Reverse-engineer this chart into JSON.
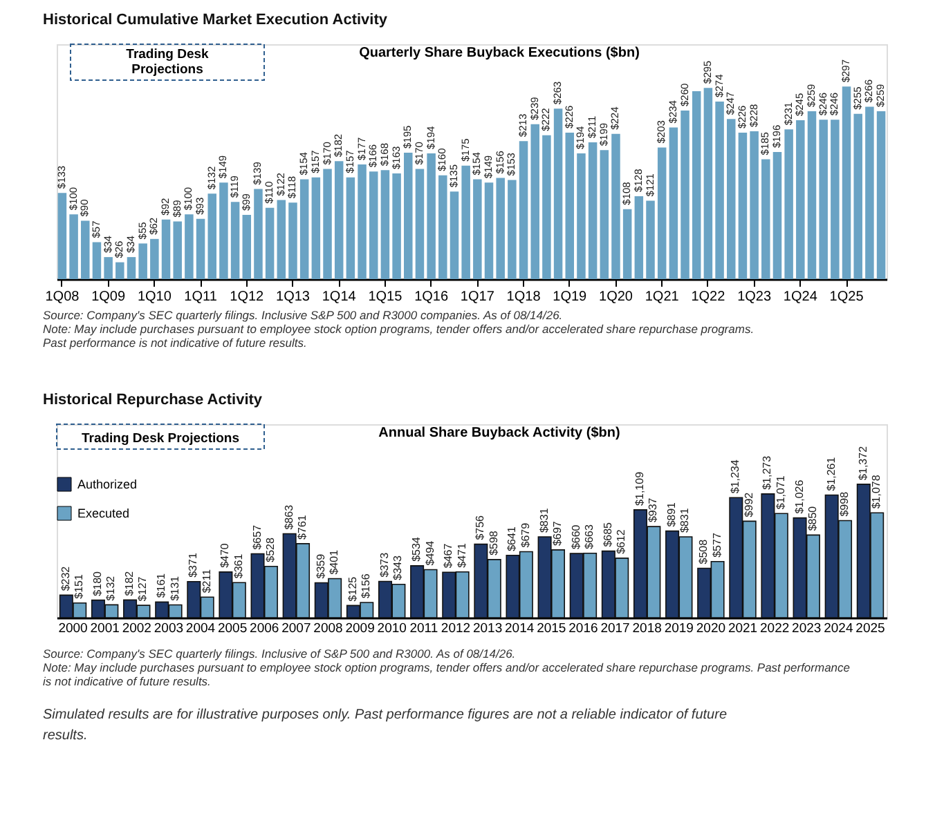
{
  "chart_data": [
    {
      "type": "bar",
      "title": "Historical Cumulative Market Execution Activity",
      "subtitle": "Quarterly Share Buyback Executions ($bn)",
      "categories": [
        "1Q08",
        null,
        null,
        null,
        "1Q09",
        null,
        null,
        null,
        "1Q10",
        null,
        null,
        null,
        "1Q11",
        null,
        null,
        null,
        "1Q12",
        null,
        null,
        null,
        "1Q13",
        null,
        null,
        null,
        "1Q14",
        null,
        null,
        null,
        "1Q15",
        null,
        null,
        null,
        "1Q16",
        null,
        null,
        null,
        "1Q17",
        null,
        null,
        null,
        "1Q18",
        null,
        null,
        null,
        "1Q19",
        null,
        null,
        null,
        "1Q20",
        null,
        null,
        null,
        "1Q21",
        null,
        null,
        null,
        "1Q22",
        null,
        null,
        null,
        "1Q23",
        null,
        null,
        null,
        "1Q24",
        null,
        null,
        null,
        "1Q25",
        null,
        null,
        null
      ],
      "series": [
        {
          "color": "#6aa3c4",
          "values": [
            133,
            100,
            90,
            57,
            34,
            26,
            34,
            55,
            62,
            92,
            89,
            100,
            93,
            132,
            149,
            119,
            99,
            139,
            110,
            122,
            118,
            154,
            157,
            170,
            182,
            157,
            177,
            166,
            168,
            163,
            195,
            170,
            194,
            160,
            135,
            175,
            154,
            149,
            156,
            153,
            213,
            239,
            222,
            263,
            226,
            194,
            211,
            199,
            224,
            108,
            128,
            121,
            203,
            234,
            260,
            290,
            295,
            274,
            247,
            226,
            228,
            185,
            196,
            231,
            245,
            259,
            246,
            246,
            297,
            255,
            266,
            259
          ],
          "value_labels": [
            "$133",
            "$100",
            "$90",
            "$57",
            "$34",
            "$26",
            "$34",
            "$55",
            "$62",
            "$92",
            "$89",
            "$100",
            "$93",
            "$132",
            "$149",
            "$119",
            "$99",
            "$139",
            "$110",
            "$122",
            "$118",
            "$154",
            "$157",
            "$170",
            "$182",
            "$157",
            "$177",
            "$166",
            "$168",
            "$163",
            "$195",
            "$170",
            "$194",
            "$160",
            "$135",
            "$175",
            "$154",
            "$149",
            "$156",
            "$153",
            "$213",
            "$239",
            "$222",
            "$263",
            "$226",
            "$194",
            "$211",
            "$199",
            "$224",
            "$108",
            "$128",
            "$121",
            "$203",
            "$234",
            "$260",
            null,
            "$295",
            "$274",
            "$247",
            "$226",
            "$228",
            "$185",
            "$196",
            "$231",
            "$245",
            "$259",
            "$246",
            "$246",
            "$297",
            "$255",
            "$266",
            "$259"
          ]
        }
      ],
      "annotations": [
        "Trading Desk Projections",
        "Source: Company's SEC quarterly filings. Inclusive S&P 500 and R3000 companies. As of 08/14/26.",
        "Note: May include purchases pursuant to employee stock option programs, tender offers and/or accelerated share repurchase programs.",
        "Past performance is not indicative of future results."
      ]
    },
    {
      "type": "bar",
      "title": "Historical Repurchase Activity",
      "subtitle": "Annual  Share Buyback Activity ($bn)",
      "legend": "top left",
      "categories": [
        "2000",
        "2001",
        "2002",
        "2003",
        "2004",
        "2005",
        "2006",
        "2007",
        "2008",
        "2009",
        "2010",
        "2011",
        "2012",
        "2013",
        "2014",
        "2015",
        "2016",
        "2017",
        "2018",
        "2019",
        "2020",
        "2021",
        "2022",
        "2023",
        "2024",
        "2025"
      ],
      "series": [
        {
          "name": "Authorized",
          "color": "#1f3868",
          "values": [
            232,
            180,
            182,
            161,
            371,
            470,
            657,
            863,
            359,
            125,
            373,
            534,
            467,
            756,
            641,
            831,
            660,
            685,
            1109,
            891,
            508,
            1234,
            1273,
            1026,
            1261,
            1372
          ],
          "value_labels": [
            "$232",
            "$180",
            "$182",
            "$161",
            "$371",
            "$470",
            "$657",
            "$863",
            "$359",
            "$125",
            "$373",
            "$534",
            "$467",
            "$756",
            "$641",
            "$831",
            "$660",
            "$685",
            "$1,109",
            "$891",
            "$508",
            "$1,234",
            "$1,273",
            "$1,026",
            "$1,261",
            "$1,372"
          ]
        },
        {
          "name": "Executed",
          "color": "#6aa3c4",
          "values": [
            151,
            132,
            127,
            131,
            211,
            361,
            528,
            761,
            401,
            156,
            343,
            494,
            471,
            598,
            679,
            697,
            663,
            612,
            937,
            831,
            577,
            992,
            1071,
            850,
            998,
            1078
          ],
          "value_labels": [
            "$151",
            "$132",
            "$127",
            "$131",
            "$211",
            "$361",
            "$528",
            "$761",
            "$401",
            "$156",
            "$343",
            "$494",
            "$471",
            "$598",
            "$679",
            "$697",
            "$663",
            "$612",
            "$937",
            "$831",
            "$577",
            "$992",
            "$1,071",
            "$850",
            "$998",
            "$1,078"
          ]
        }
      ],
      "annotations": [
        "Trading Desk Projections",
        "Source: Company's SEC quarterly filings. Inclusive of S&P 500 and R3000. As of 08/14/26.",
        "Note: May include purchases pursuant to employee stock option programs, tender offers and/or accelerated share repurchase programs. Past performance is not indicative of future results.",
        "Simulated results are for illustrative purposes only. Past performance figures are not a reliable indicator of future results."
      ]
    }
  ]
}
